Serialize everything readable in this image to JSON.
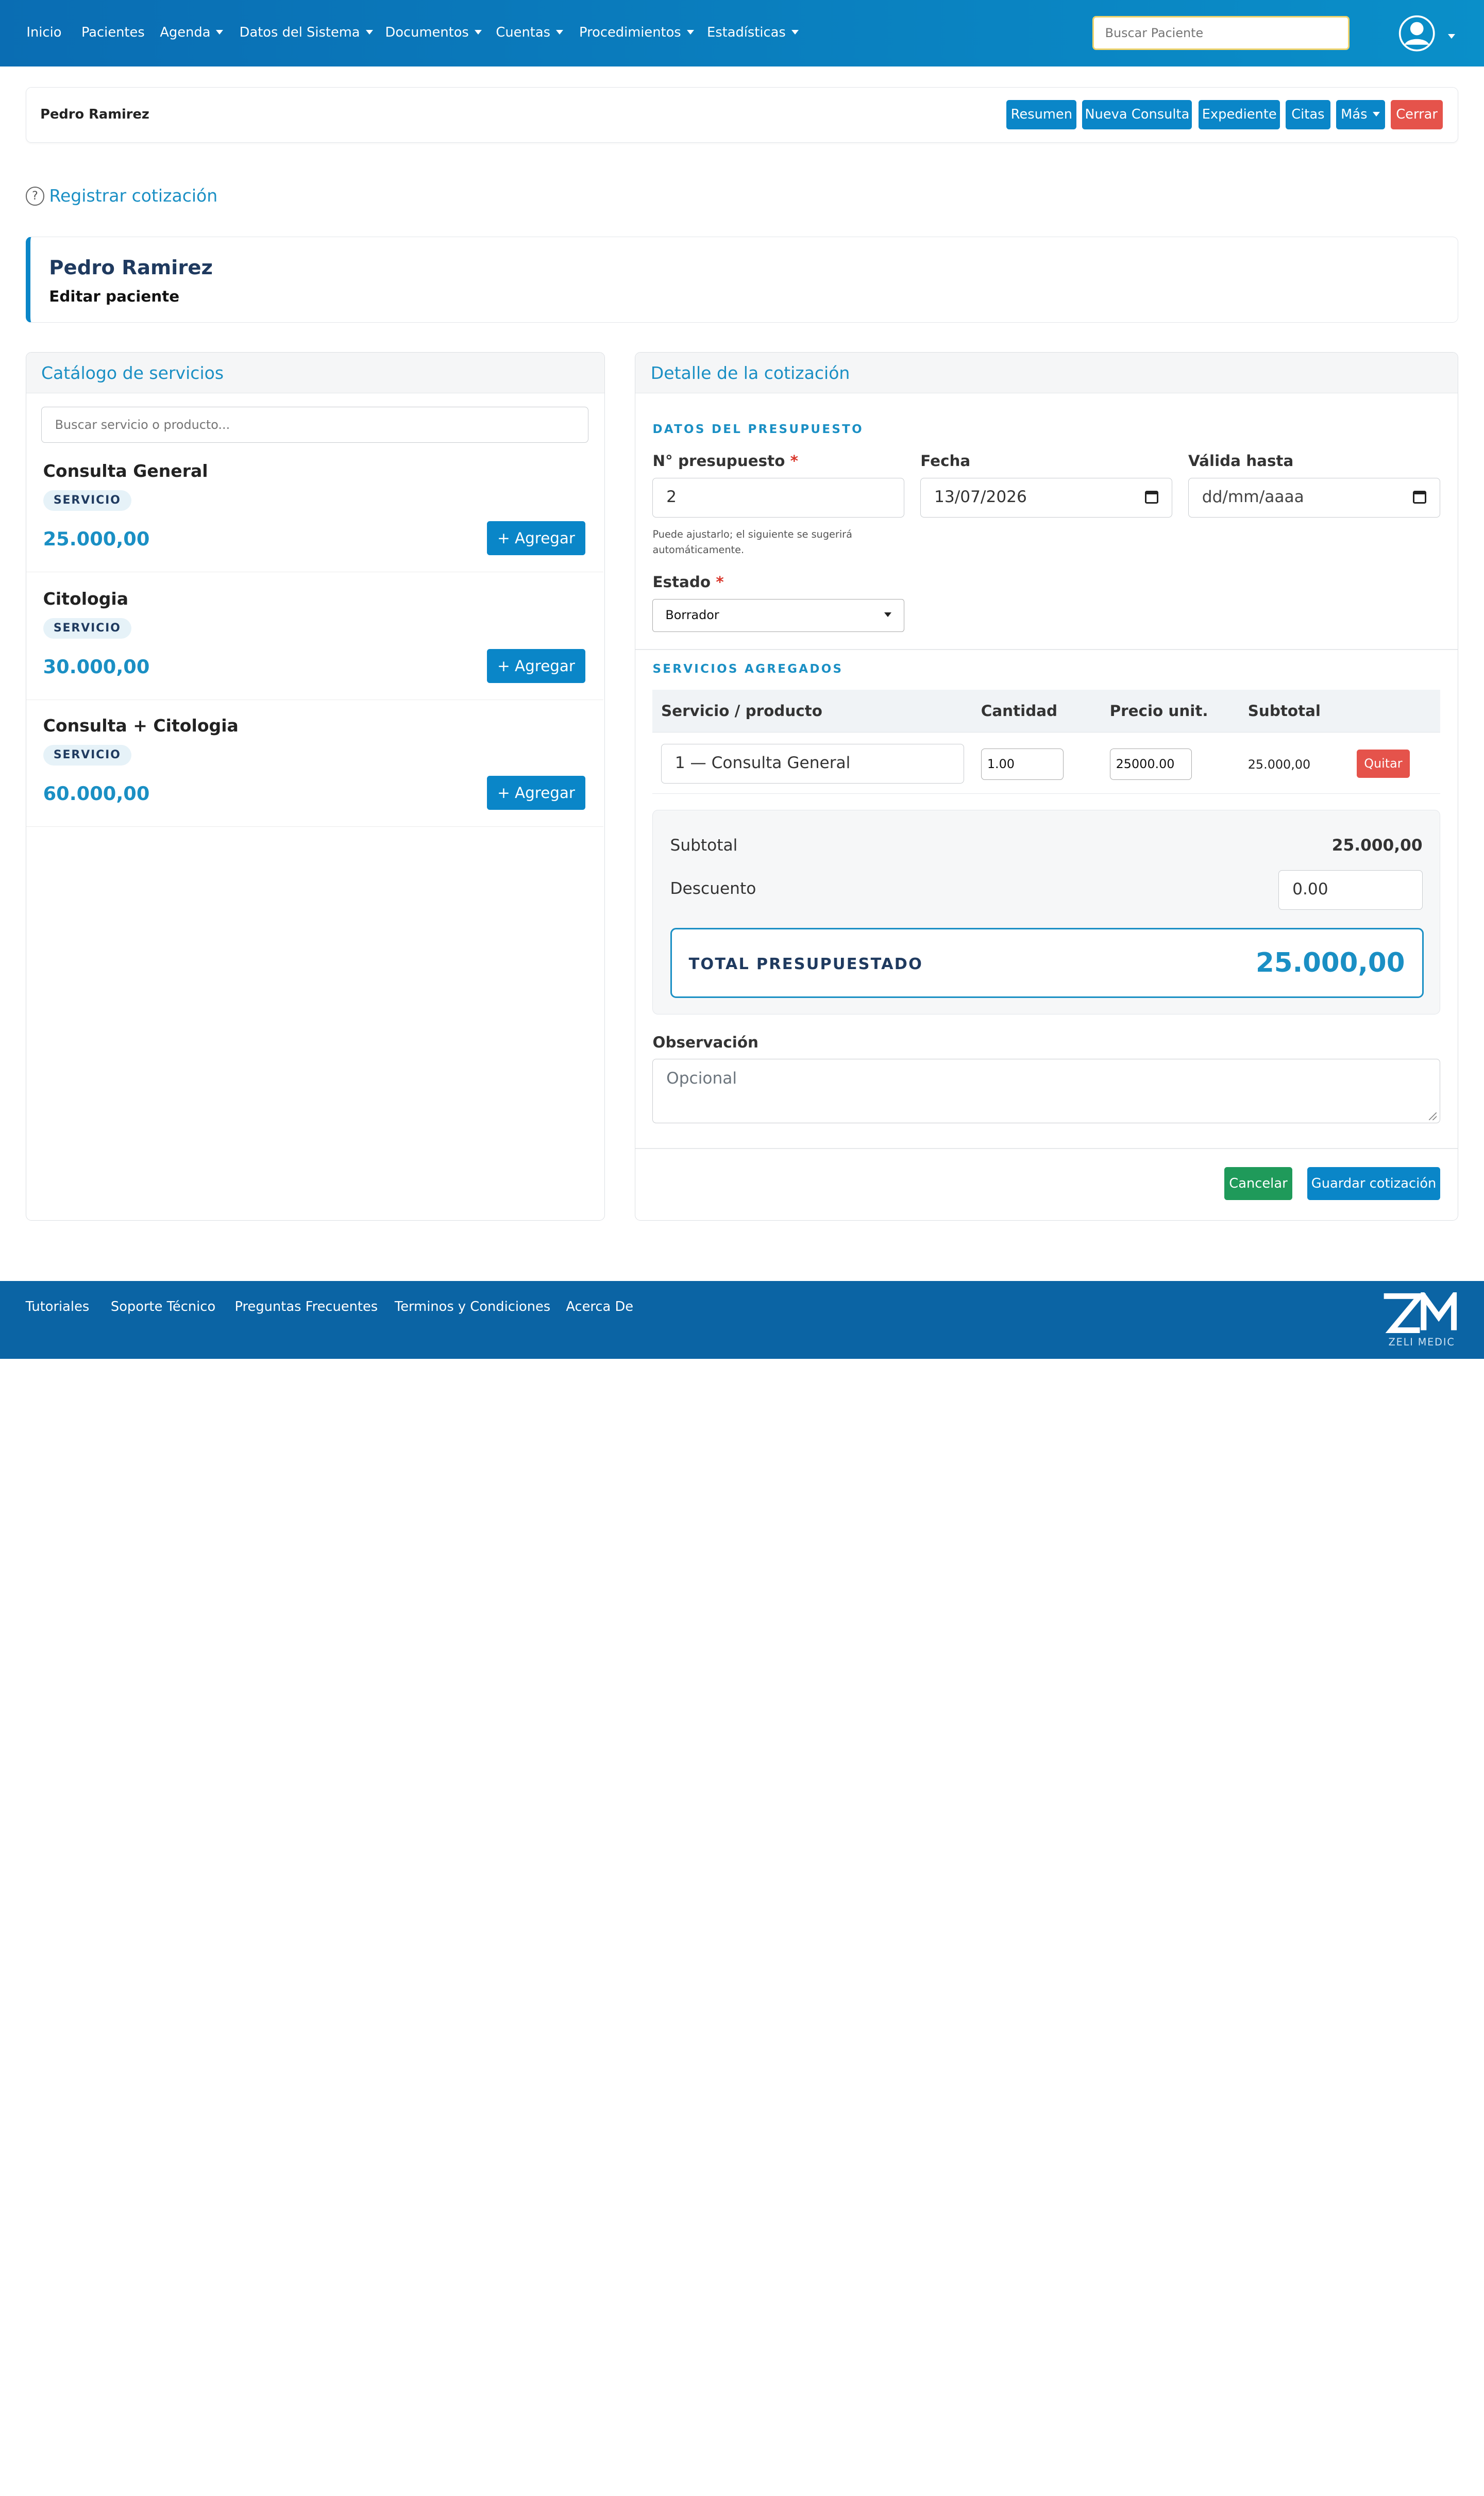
{
  "nav": {
    "items": [
      {
        "label": "Inicio",
        "dropdown": false
      },
      {
        "label": "Pacientes",
        "dropdown": false
      },
      {
        "label": "Agenda",
        "dropdown": true
      },
      {
        "label": "Datos del Sistema",
        "dropdown": true
      },
      {
        "label": "Documentos",
        "dropdown": true
      },
      {
        "label": "Cuentas",
        "dropdown": true
      },
      {
        "label": "Procedimientos",
        "dropdown": true
      },
      {
        "label": "Estadísticas",
        "dropdown": true
      }
    ],
    "search_placeholder": "Buscar Paciente",
    "user_icon": "user-circle-icon"
  },
  "patient_bar": {
    "name": "Pedro Ramirez",
    "buttons": [
      "Resumen",
      "Nueva Consulta",
      "Expediente",
      "Citas",
      "Más",
      "Cerrar"
    ]
  },
  "page": {
    "help_icon": "question-circle-icon",
    "help_glyph": "?",
    "title": "Registrar cotización"
  },
  "patient_card": {
    "name": "Pedro Ramirez",
    "subtitle": "Editar paciente"
  },
  "catalog": {
    "title": "Catálogo de servicios",
    "search_placeholder": "Buscar servicio o producto...",
    "add_label": "+ Agregar",
    "items": [
      {
        "name": "Consulta General",
        "type": "SERVICIO",
        "price": "25.000,00"
      },
      {
        "name": "Citologia",
        "type": "SERVICIO",
        "price": "30.000,00"
      },
      {
        "name": "Consulta + Citologia",
        "type": "SERVICIO",
        "price": "60.000,00"
      }
    ]
  },
  "detail": {
    "title": "Detalle de la cotización",
    "section_data": "DATOS DEL PRESUPUESTO",
    "number_label": "N° presupuesto",
    "number_value": "2",
    "required_mark": "*",
    "date_label": "Fecha",
    "date_value": "13/07/2026",
    "valid_label": "Válida hasta",
    "valid_placeholder": "dd/mm/aaaa",
    "help_text": "Puede ajustarlo; el siguiente se sugerirá automáticamente.",
    "status_label": "Estado",
    "status_value": "Borrador",
    "section_services": "SERVICIOS AGREGADOS",
    "columns": [
      "Servicio / producto",
      "Cantidad",
      "Precio unit.",
      "Subtotal"
    ],
    "rows": [
      {
        "service": "1 — Consulta General",
        "quantity": "1.00",
        "unit_price": "25000.00",
        "subtotal": "25.000,00",
        "remove_label": "Quitar"
      }
    ],
    "subtotal_label": "Subtotal",
    "subtotal_value": "25.000,00",
    "discount_label": "Descuento",
    "discount_value": "0.00",
    "total_label": "TOTAL PRESUPUESTADO",
    "total_value": "25.000,00",
    "observation_label": "Observación",
    "observation_placeholder": "Opcional",
    "cancel_label": "Cancelar",
    "save_label": "Guardar cotización"
  },
  "footer": {
    "links": [
      "Tutoriales",
      "Soporte Técnico",
      "Preguntas Frecuentes",
      "Terminos y Condiciones",
      "Acerca De"
    ],
    "logo_text": "ZELI MEDIC"
  },
  "colors": {
    "primary": "#0a86c8",
    "accent_text": "#1a8fc4",
    "danger": "#e5534b",
    "success": "#1f9a5a",
    "footer": "#0b64a4"
  }
}
